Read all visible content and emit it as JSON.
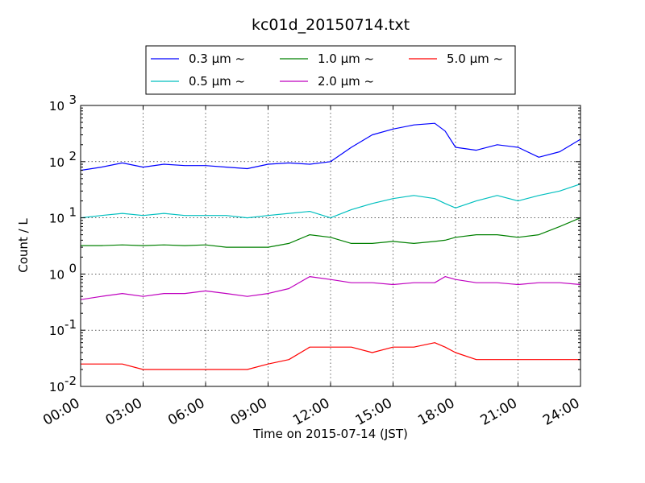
{
  "chart_data": {
    "type": "line",
    "title": "kc01d_20150714.txt",
    "xlabel": "Time on 2015-07-14 (JST)",
    "ylabel": "Count / L",
    "yscale": "log",
    "ylim": [
      0.01,
      1000
    ],
    "xlim": [
      "00:00",
      "24:00"
    ],
    "grid": true,
    "legend": "top-center",
    "x_ticks": [
      "00:00",
      "03:00",
      "06:00",
      "09:00",
      "12:00",
      "15:00",
      "18:00",
      "21:00",
      "24:00"
    ],
    "y_ticks": [
      {
        "value": 0.01,
        "base": "10",
        "exp": "-2"
      },
      {
        "value": 0.1,
        "base": "10",
        "exp": "-1"
      },
      {
        "value": 1,
        "base": "10",
        "exp": "0"
      },
      {
        "value": 10,
        "base": "10",
        "exp": "1"
      },
      {
        "value": 100,
        "base": "10",
        "exp": "2"
      },
      {
        "value": 1000,
        "base": "10",
        "exp": "3"
      }
    ],
    "x_hours": [
      0,
      1,
      2,
      3,
      4,
      5,
      6,
      7,
      8,
      9,
      10,
      11,
      12,
      13,
      14,
      15,
      16,
      17,
      17.5,
      18,
      19,
      20,
      21,
      22,
      23,
      24
    ],
    "series": [
      {
        "name": "0.3 μm ~",
        "color": "#0000ff",
        "values": [
          70,
          80,
          95,
          80,
          90,
          85,
          85,
          80,
          75,
          90,
          95,
          90,
          100,
          180,
          300,
          380,
          450,
          480,
          350,
          180,
          160,
          200,
          180,
          120,
          150,
          250
        ]
      },
      {
        "name": "0.5 μm ~",
        "color": "#00bfbf",
        "values": [
          10,
          11,
          12,
          11,
          12,
          11,
          11,
          11,
          10,
          11,
          12,
          13,
          10,
          14,
          18,
          22,
          25,
          22,
          18,
          15,
          20,
          25,
          20,
          25,
          30,
          40
        ]
      },
      {
        "name": "1.0 μm ~",
        "color": "#008000",
        "values": [
          3.2,
          3.2,
          3.3,
          3.2,
          3.3,
          3.2,
          3.3,
          3.0,
          3.0,
          3.0,
          3.5,
          5.0,
          4.5,
          3.5,
          3.5,
          3.8,
          3.5,
          3.8,
          4.0,
          4.5,
          5.0,
          5.0,
          4.5,
          5.0,
          7.0,
          10.0
        ]
      },
      {
        "name": "2.0 μm ~",
        "color": "#bf00bf",
        "values": [
          0.35,
          0.4,
          0.45,
          0.4,
          0.45,
          0.45,
          0.5,
          0.45,
          0.4,
          0.45,
          0.55,
          0.9,
          0.8,
          0.7,
          0.7,
          0.65,
          0.7,
          0.7,
          0.9,
          0.8,
          0.7,
          0.7,
          0.65,
          0.7,
          0.7,
          0.65
        ]
      },
      {
        "name": "5.0 μm ~",
        "color": "#ff0000",
        "values": [
          0.025,
          0.025,
          0.025,
          0.02,
          0.02,
          0.02,
          0.02,
          0.02,
          0.02,
          0.025,
          0.03,
          0.05,
          0.05,
          0.05,
          0.04,
          0.05,
          0.05,
          0.06,
          0.05,
          0.04,
          0.03,
          0.03,
          0.03,
          0.03,
          0.03,
          0.03
        ]
      }
    ]
  }
}
